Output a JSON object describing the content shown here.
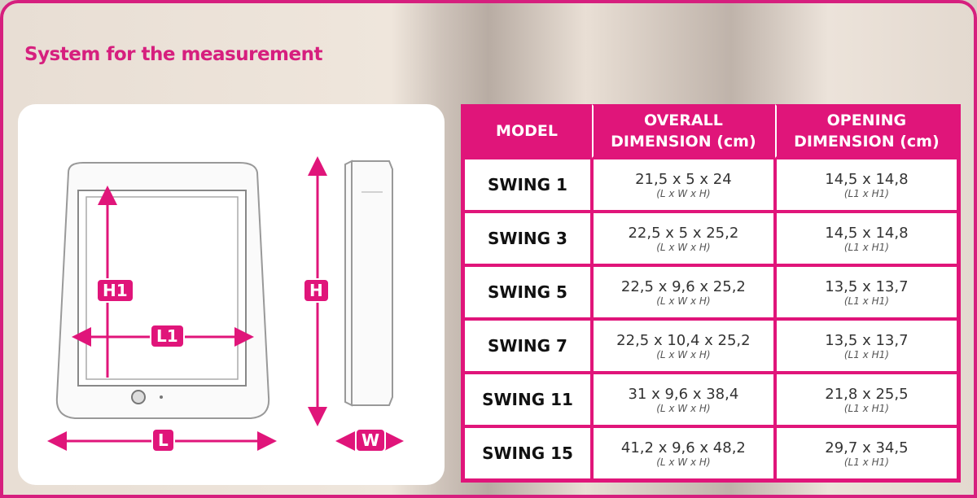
{
  "title": "System for the measurement",
  "colors": {
    "accent": "#e0157a"
  },
  "diagram": {
    "labels": {
      "h1": "H1",
      "l1": "L1",
      "h": "H",
      "l": "L",
      "w": "W"
    }
  },
  "table": {
    "headers": [
      "MODEL",
      "OVERALL DIMENSION (cm)",
      "OPENING DIMENSION (cm)"
    ],
    "rows": [
      {
        "model": "SWING 1",
        "overall": "21,5 x 5 x 24",
        "overall_unit": "(L x W x H)",
        "opening": "14,5 x 14,8",
        "opening_unit": "(L1 x H1)"
      },
      {
        "model": "SWING 3",
        "overall": "22,5 x 5 x 25,2",
        "overall_unit": "(L x W x H)",
        "opening": "14,5 x 14,8",
        "opening_unit": "(L1 x H1)"
      },
      {
        "model": "SWING 5",
        "overall": "22,5 x 9,6 x 25,2",
        "overall_unit": "(L x W x H)",
        "opening": "13,5 x 13,7",
        "opening_unit": "(L1 x H1)"
      },
      {
        "model": "SWING 7",
        "overall": "22,5 x 10,4 x 25,2",
        "overall_unit": "(L x W x H)",
        "opening": "13,5 x 13,7",
        "opening_unit": "(L1 x H1)"
      },
      {
        "model": "SWING 11",
        "overall": "31 x 9,6 x 38,4",
        "overall_unit": "(L x W x H)",
        "opening": "21,8 x 25,5",
        "opening_unit": "(L1 x H1)"
      },
      {
        "model": "SWING 15",
        "overall": "41,2 x 9,6 x 48,2",
        "overall_unit": "(L x W x H)",
        "opening": "29,7 x 34,5",
        "opening_unit": "(L1 x H1)"
      }
    ]
  }
}
